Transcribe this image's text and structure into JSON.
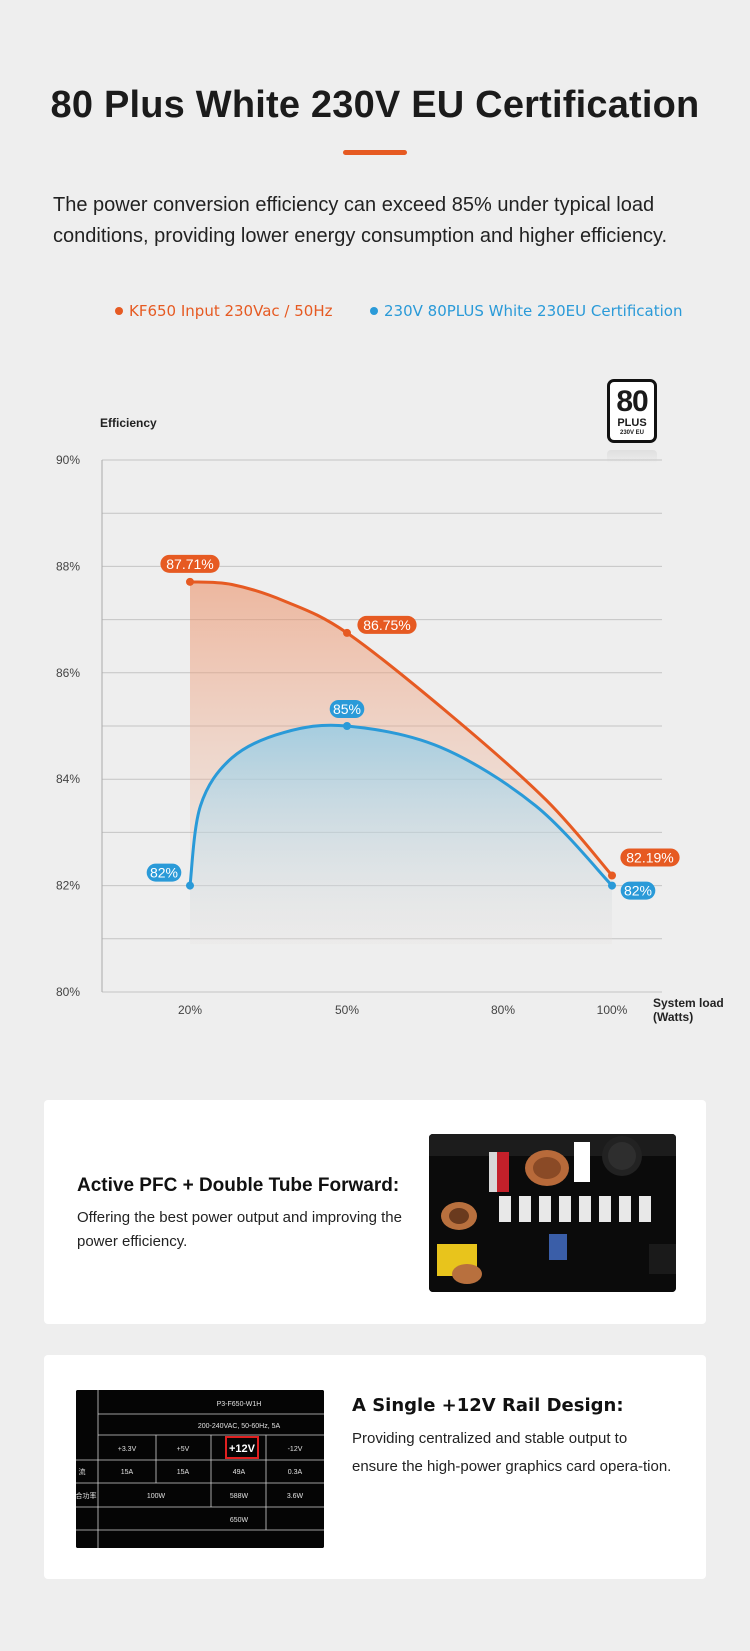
{
  "page": {
    "title": "80 Plus White 230V EU Certification",
    "intro": "The power conversion efficiency can exceed 85% under typical load conditions, providing lower energy consumption and higher efficiency.",
    "accent_color": "#e65a22",
    "blue_color": "#2a9ad8"
  },
  "badge": {
    "big": "80",
    "plus": "PLUS",
    "sub": "230V EU"
  },
  "chart_data": {
    "type": "area",
    "ylabel": "Efficiency",
    "xlabel_line1": "System load",
    "xlabel_line2": "(Watts)",
    "ylim": [
      80,
      90
    ],
    "yticks": [
      "90%",
      "88%",
      "86%",
      "84%",
      "82%",
      "80%"
    ],
    "ytick_values": [
      90,
      88,
      86,
      84,
      82,
      80
    ],
    "categories": [
      "20%",
      "50%",
      "80%",
      "100%"
    ],
    "x_values": [
      20,
      50,
      80,
      100
    ],
    "grid": true,
    "legend": "top",
    "series": [
      {
        "name": "KF650 Input 230Vac / 50Hz",
        "color": "#e65a22",
        "points": [
          {
            "x": 20,
            "y": 87.71,
            "label": "87.71%"
          },
          {
            "x": 50,
            "y": 86.75,
            "label": "86.75%"
          },
          {
            "x": 100,
            "y": 82.19,
            "label": "82.19%"
          }
        ]
      },
      {
        "name": "230V 80PLUS White 230EU Certification",
        "color": "#2a9ad8",
        "points": [
          {
            "x": 20,
            "y": 82,
            "label": "82%"
          },
          {
            "x": 50,
            "y": 85,
            "label": "85%"
          },
          {
            "x": 100,
            "y": 82,
            "label": "82%"
          }
        ]
      }
    ]
  },
  "cards": {
    "pfc": {
      "title": "Active PFC + Double Tube Forward:",
      "text": "Offering the best power output and improving the power efficiency."
    },
    "rail": {
      "title": "A Single +12V Rail Design:",
      "text": "Providing centralized and stable output to ensure the high-power graphics card opera-tion."
    }
  },
  "spec_label": {
    "model": "P3-F650-W1H",
    "input": "200-240VAC, 50-60Hz, 5A",
    "rails": [
      "+3.3V",
      "+5V",
      "+12V",
      "-12V"
    ],
    "row_current_label": "流",
    "currents": [
      "15A",
      "15A",
      "49A",
      "0.3A"
    ],
    "row_power_label": "合功率",
    "power_combined": "100W",
    "power_12v": "588W",
    "power_neg12": "3.6W",
    "total": "650W"
  }
}
